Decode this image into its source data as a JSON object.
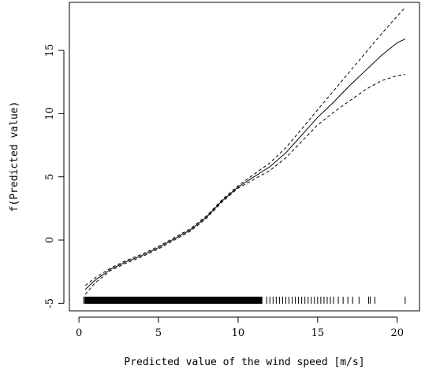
{
  "chart_data": {
    "type": "line",
    "xlabel": "Predicted value of the wind speed [m/s]",
    "ylabel": "f(Predicted value)",
    "xlim": [
      -0.6,
      21.4
    ],
    "ylim": [
      -5.6,
      18.8
    ],
    "xticks": [
      0,
      5,
      10,
      15,
      20
    ],
    "yticks": [
      -5,
      0,
      5,
      10,
      15
    ],
    "xtick_labels": [
      "0",
      "5",
      "10",
      "15",
      "20"
    ],
    "ytick_labels": [
      "-5",
      "0",
      "5",
      "10",
      "15"
    ],
    "grid": false,
    "series": [
      {
        "style": "solid",
        "x": [
          0.4,
          1,
          2,
          3,
          4,
          5,
          6,
          7,
          8,
          9,
          10,
          11,
          12,
          13,
          14,
          15,
          16,
          17,
          18,
          19,
          20,
          20.5
        ],
        "y": [
          -3.9,
          -3.2,
          -2.3,
          -1.7,
          -1.2,
          -0.6,
          0.1,
          0.8,
          1.8,
          3.1,
          4.2,
          5.0,
          5.8,
          6.9,
          8.3,
          9.7,
          10.9,
          12.2,
          13.4,
          14.6,
          15.6,
          15.9
        ]
      },
      {
        "style": "dashed",
        "x": [
          0.4,
          1,
          2,
          3,
          4,
          5,
          6,
          7,
          8,
          9,
          10,
          11,
          12,
          13,
          14,
          15,
          16,
          17,
          18,
          19,
          20,
          20.5
        ],
        "y": [
          -3.6,
          -3.0,
          -2.2,
          -1.6,
          -1.1,
          -0.5,
          0.2,
          0.9,
          1.9,
          3.2,
          4.3,
          5.2,
          6.1,
          7.3,
          8.8,
          10.3,
          11.8,
          13.3,
          14.8,
          16.3,
          17.7,
          18.4
        ]
      },
      {
        "style": "dashed",
        "x": [
          0.4,
          1,
          2,
          3,
          4,
          5,
          6,
          7,
          8,
          9,
          10,
          11,
          12,
          13,
          14,
          15,
          16,
          17,
          18,
          19,
          20,
          20.5
        ],
        "y": [
          -4.3,
          -3.4,
          -2.4,
          -1.8,
          -1.3,
          -0.7,
          0.0,
          0.7,
          1.7,
          3.0,
          4.1,
          4.8,
          5.5,
          6.5,
          7.8,
          9.1,
          10.1,
          11.0,
          11.9,
          12.6,
          13.0,
          13.1
        ]
      }
    ],
    "rug": [
      0.3,
      0.5,
      0.8,
      1.0,
      1.3,
      1.6,
      1.9,
      2.2,
      2.5,
      2.8,
      3.1,
      3.4,
      3.7,
      4.0,
      4.3,
      4.6,
      4.9,
      5.2,
      5.5,
      5.8,
      6.1,
      6.4,
      6.7,
      7.0,
      7.3,
      7.6,
      7.9,
      8.2,
      8.5,
      8.8,
      9.1,
      9.4,
      9.7,
      10.0,
      10.3,
      10.6,
      10.9,
      11.2,
      11.5,
      11.8,
      12.0,
      12.2,
      12.4,
      12.6,
      12.8,
      13.0,
      13.2,
      13.4,
      13.6,
      13.8,
      14.0,
      14.2,
      14.4,
      14.6,
      14.8,
      15.0,
      15.2,
      15.4,
      15.6,
      15.8,
      16.0,
      16.3,
      16.6,
      16.9,
      17.2,
      17.6,
      18.2,
      18.3,
      18.6,
      20.5
    ]
  }
}
